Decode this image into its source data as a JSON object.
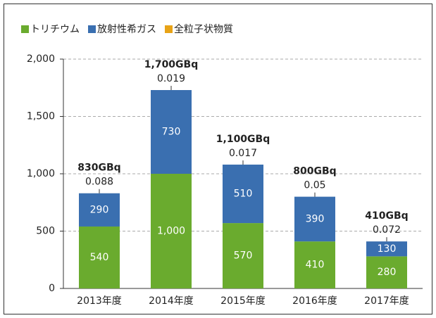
{
  "chart_data": {
    "type": "stacked_bar",
    "categories": [
      "2013年度",
      "2014年度",
      "2015年度",
      "2016年度",
      "2017年度"
    ],
    "series": [
      {
        "name": "トリチウム",
        "color": "#6aab2e",
        "values": [
          540,
          1000,
          570,
          410,
          280
        ],
        "value_labels": [
          "540",
          "1,000",
          "570",
          "410",
          "280"
        ]
      },
      {
        "name": "放射性希ガス",
        "color": "#3a6fb0",
        "values": [
          290,
          730,
          510,
          390,
          130
        ]
      },
      {
        "name": "全粒子状物質",
        "color": "#e8a317",
        "values": [
          0.088,
          0.019,
          0.017,
          0.05,
          0.072
        ]
      }
    ],
    "total_labels": [
      "830GBq",
      "1,700GBq",
      "1,100GBq",
      "800GBq",
      "410GBq"
    ],
    "ylim": [
      0,
      2000
    ],
    "yticks": [
      0,
      500,
      {
        "value": 1000,
        "label": "1,000"
      },
      {
        "value": 1500,
        "label": "1,500"
      },
      {
        "value": 2000,
        "label": "2,000"
      }
    ],
    "grid": true,
    "legend": "top"
  }
}
